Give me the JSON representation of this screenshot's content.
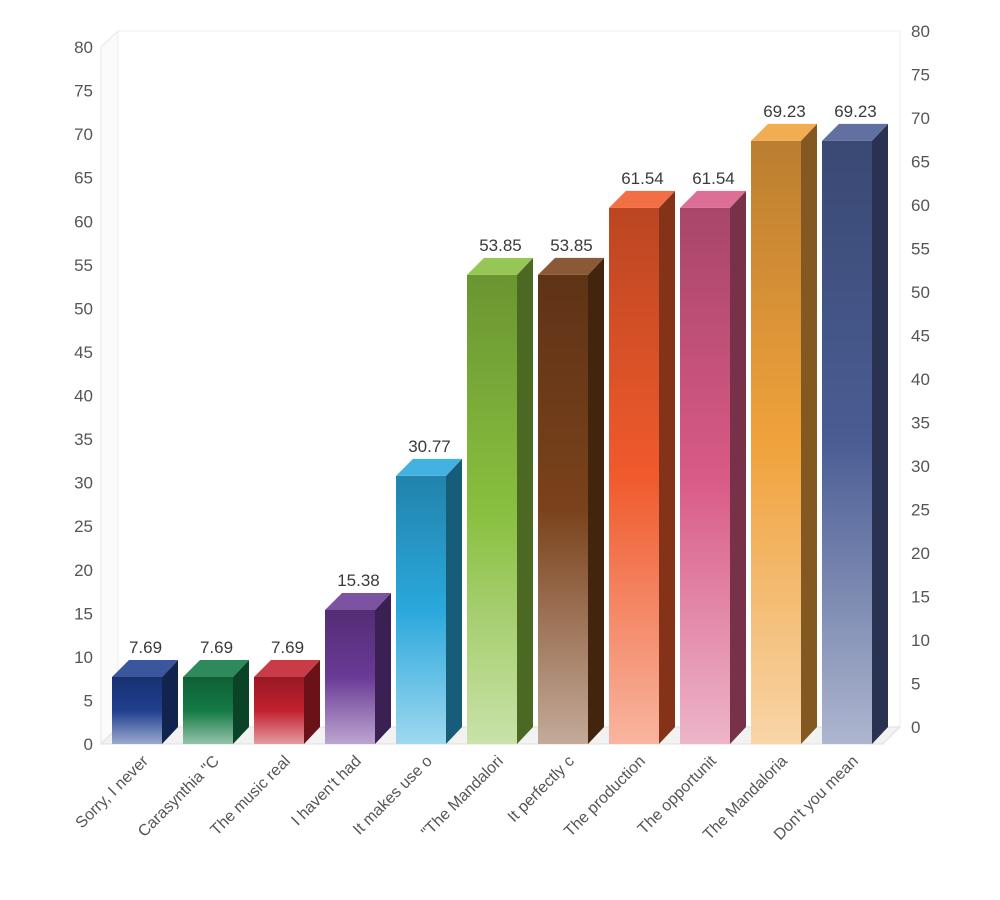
{
  "chart_data": {
    "type": "bar",
    "categories": [
      "Sorry, I never",
      "Carasynthia \"C",
      "The music real",
      "I haven't had",
      "It makes use o",
      "\"The Mandalori",
      "It perfectly c",
      "The production",
      "The opportunit",
      "The Mandaloria",
      "Don't you mean"
    ],
    "values": [
      7.69,
      7.69,
      7.69,
      15.38,
      30.77,
      53.85,
      53.85,
      61.54,
      61.54,
      69.23,
      69.23
    ],
    "data_labels": [
      "7.69",
      "7.69",
      "7.69",
      "15.38",
      "30.77",
      "53.85",
      "53.85",
      "61.54",
      "61.54",
      "69.23",
      "69.23"
    ],
    "colors": [
      "#1f3f8f",
      "#137a45",
      "#c2202e",
      "#6a3a96",
      "#2aa8dc",
      "#88bf3f",
      "#7a421c",
      "#f05a2c",
      "#d85a86",
      "#f0a23c",
      "#4a5d94"
    ],
    "ylim": [
      0,
      80
    ],
    "yticks": [
      0,
      5,
      10,
      15,
      20,
      25,
      30,
      35,
      40,
      45,
      50,
      55,
      60,
      65,
      70,
      75,
      80
    ],
    "left_axis_ticks": [
      "0",
      "5",
      "10",
      "15",
      "20",
      "25",
      "30",
      "35",
      "40",
      "45",
      "50",
      "55",
      "60",
      "65",
      "70",
      "75",
      "80"
    ],
    "right_axis_ticks": [
      "0",
      "5",
      "10",
      "15",
      "20",
      "25",
      "30",
      "35",
      "40",
      "45",
      "50",
      "55",
      "60",
      "65",
      "70",
      "75",
      "80"
    ],
    "title": "",
    "xlabel": "",
    "ylabel": "",
    "grid": false,
    "style": "3d"
  }
}
